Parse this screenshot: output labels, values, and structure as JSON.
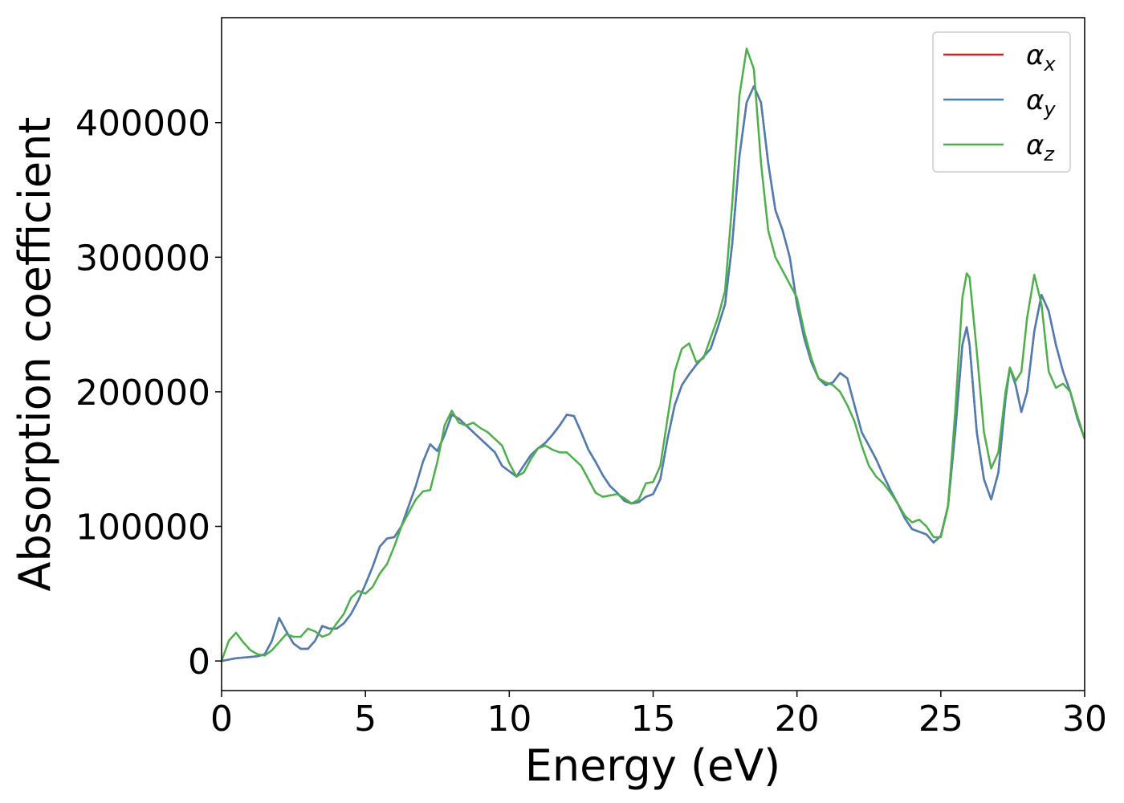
{
  "chart_data": {
    "type": "line",
    "xlabel": "Energy (eV)",
    "ylabel": "Absorption coefficient",
    "x": [
      0,
      0.25,
      0.5,
      0.75,
      1,
      1.25,
      1.5,
      1.75,
      2,
      2.25,
      2.5,
      2.75,
      3,
      3.25,
      3.5,
      3.75,
      4,
      4.25,
      4.5,
      4.75,
      5,
      5.25,
      5.5,
      5.75,
      6,
      6.25,
      6.5,
      6.75,
      7,
      7.25,
      7.5,
      7.75,
      8,
      8.25,
      8.5,
      8.75,
      9,
      9.25,
      9.5,
      9.75,
      10,
      10.25,
      10.5,
      10.75,
      11,
      11.25,
      11.5,
      11.75,
      12,
      12.25,
      12.5,
      12.75,
      13,
      13.25,
      13.5,
      13.75,
      14,
      14.25,
      14.5,
      14.75,
      15,
      15.25,
      15.5,
      15.75,
      16,
      16.25,
      16.5,
      16.75,
      17,
      17.25,
      17.5,
      17.75,
      18,
      18.25,
      18.5,
      18.75,
      19,
      19.25,
      19.5,
      19.75,
      20,
      20.25,
      20.5,
      20.75,
      21,
      21.25,
      21.5,
      21.75,
      22,
      22.25,
      22.5,
      22.75,
      23,
      23.25,
      23.5,
      23.75,
      24,
      24.25,
      24.5,
      24.75,
      25,
      25.25,
      25.5,
      25.75,
      25.9,
      26,
      26.25,
      26.5,
      26.75,
      27,
      27.25,
      27.4,
      27.6,
      27.8,
      28,
      28.25,
      28.5,
      28.75,
      29,
      29.25,
      29.5,
      29.75,
      30
    ],
    "series": [
      {
        "name": "αx",
        "color": "#e41a1c",
        "values": [
          0,
          1000,
          2000,
          2500,
          3000,
          3500,
          5000,
          15000,
          32000,
          22000,
          13000,
          9000,
          9000,
          15000,
          26000,
          24000,
          24000,
          28000,
          35000,
          45000,
          57000,
          70000,
          85000,
          91000,
          92000,
          100000,
          115000,
          130000,
          148000,
          161000,
          156000,
          168000,
          183000,
          180000,
          175000,
          170000,
          165000,
          160000,
          155000,
          145000,
          141000,
          137000,
          145000,
          153000,
          158000,
          162000,
          168000,
          175000,
          183000,
          182000,
          170000,
          157000,
          148000,
          138000,
          130000,
          125000,
          119000,
          117000,
          118000,
          122000,
          124000,
          135000,
          165000,
          190000,
          205000,
          213000,
          220000,
          226000,
          232000,
          248000,
          265000,
          310000,
          375000,
          415000,
          427000,
          415000,
          370000,
          335000,
          320000,
          300000,
          265000,
          240000,
          222000,
          210000,
          205000,
          207000,
          214000,
          210000,
          190000,
          170000,
          160000,
          150000,
          138000,
          127000,
          117000,
          106000,
          98000,
          96000,
          94000,
          88000,
          93000,
          115000,
          170000,
          235000,
          248000,
          235000,
          170000,
          135000,
          120000,
          140000,
          195000,
          218000,
          205000,
          185000,
          200000,
          245000,
          272000,
          260000,
          235000,
          215000,
          200000,
          180000,
          165000
        ]
      },
      {
        "name": "αy",
        "color": "#4a7fb5",
        "values": [
          0,
          1000,
          2000,
          2500,
          3000,
          3500,
          5000,
          15000,
          32000,
          22000,
          13000,
          9000,
          9000,
          15000,
          26000,
          24000,
          24000,
          28000,
          35000,
          45000,
          57000,
          70000,
          85000,
          91000,
          92000,
          100000,
          115000,
          130000,
          148000,
          161000,
          156000,
          168000,
          183000,
          180000,
          175000,
          170000,
          165000,
          160000,
          155000,
          145000,
          141000,
          137000,
          145000,
          153000,
          158000,
          162000,
          168000,
          175000,
          183000,
          182000,
          170000,
          157000,
          148000,
          138000,
          130000,
          125000,
          119000,
          117000,
          118000,
          122000,
          124000,
          135000,
          165000,
          190000,
          205000,
          213000,
          220000,
          226000,
          232000,
          248000,
          265000,
          310000,
          375000,
          415000,
          427000,
          415000,
          370000,
          335000,
          320000,
          300000,
          265000,
          240000,
          222000,
          210000,
          205000,
          207000,
          214000,
          210000,
          190000,
          170000,
          160000,
          150000,
          138000,
          127000,
          117000,
          106000,
          98000,
          96000,
          94000,
          88000,
          93000,
          115000,
          170000,
          235000,
          248000,
          235000,
          170000,
          135000,
          120000,
          140000,
          195000,
          218000,
          205000,
          185000,
          200000,
          245000,
          272000,
          260000,
          235000,
          215000,
          200000,
          180000,
          165000
        ]
      },
      {
        "name": "αz",
        "color": "#4daf4a",
        "values": [
          0,
          15000,
          21000,
          14000,
          8000,
          5000,
          4000,
          8000,
          14000,
          20000,
          18000,
          18000,
          24000,
          22000,
          18000,
          20000,
          28000,
          35000,
          47000,
          52000,
          50000,
          55000,
          65000,
          72000,
          85000,
          100000,
          110000,
          120000,
          126000,
          127000,
          148000,
          175000,
          186000,
          177000,
          175000,
          177000,
          173000,
          170000,
          165000,
          160000,
          147000,
          137000,
          140000,
          150000,
          158000,
          160000,
          157000,
          155000,
          155000,
          150000,
          145000,
          135000,
          125000,
          122000,
          123000,
          124000,
          121000,
          117000,
          120000,
          132000,
          133000,
          145000,
          180000,
          215000,
          232000,
          236000,
          222000,
          225000,
          240000,
          255000,
          275000,
          340000,
          420000,
          455000,
          440000,
          370000,
          320000,
          300000,
          290000,
          280000,
          270000,
          245000,
          225000,
          210000,
          207000,
          205000,
          200000,
          190000,
          178000,
          160000,
          145000,
          137000,
          132000,
          125000,
          117000,
          108000,
          103000,
          105000,
          100000,
          92000,
          92000,
          115000,
          185000,
          270000,
          288000,
          285000,
          230000,
          170000,
          143000,
          155000,
          200000,
          218000,
          208000,
          215000,
          255000,
          287000,
          265000,
          215000,
          203000,
          206000,
          200000,
          182000,
          165000
        ]
      }
    ],
    "xlim": [
      0,
      30
    ],
    "xticks": [
      0,
      5,
      10,
      15,
      20,
      25,
      30
    ],
    "ylim": [
      -22000,
      478000
    ],
    "yticks": [
      0,
      100000,
      200000,
      300000,
      400000
    ],
    "legend": "upper right",
    "grid": false
  }
}
